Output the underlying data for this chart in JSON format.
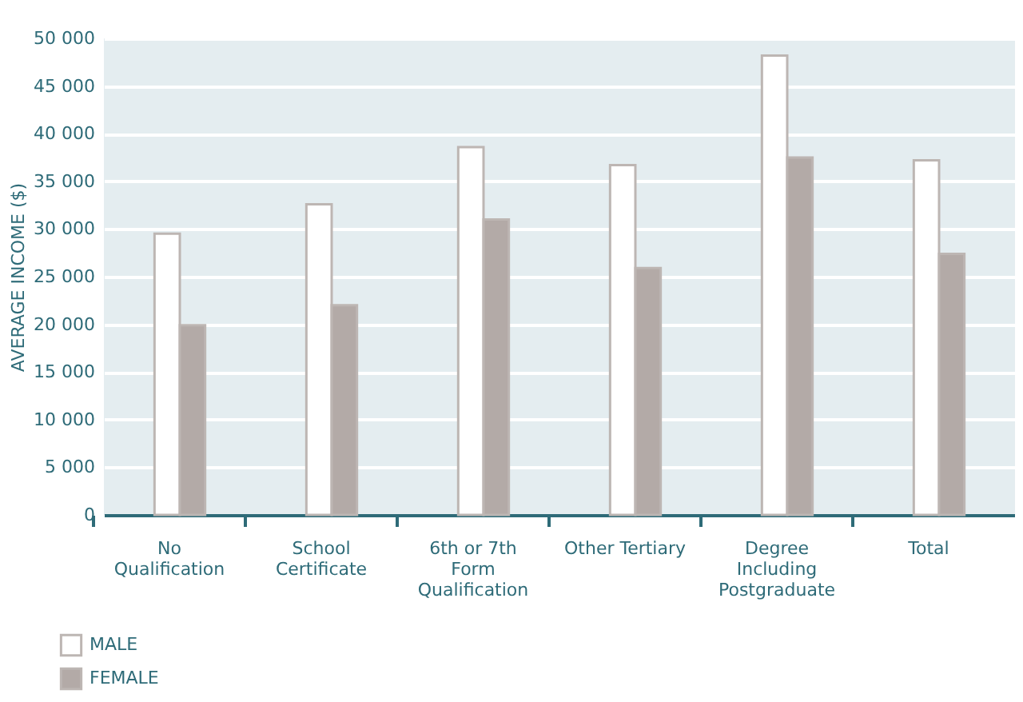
{
  "chart_data": {
    "type": "bar",
    "ylabel": "AVERAGE INCOME ($)",
    "categories": [
      "No Qualification",
      "School Certificate",
      "6th or 7th Form Qualification",
      "Other Tertiary",
      "Degree Including Postgraduate",
      "Total"
    ],
    "series": [
      {
        "name": "MALE",
        "color": "#ffffff",
        "values": [
          29500,
          32600,
          38600,
          36700,
          48200,
          37200
        ]
      },
      {
        "name": "FEMALE",
        "color": "#b3aaa7",
        "values": [
          19900,
          22000,
          31000,
          25900,
          37500,
          27400
        ]
      }
    ],
    "ylim": [
      0,
      50000
    ],
    "yticks": [
      {
        "value": 0,
        "label": "0"
      },
      {
        "value": 5000,
        "label": "5 000"
      },
      {
        "value": 10000,
        "label": "10 000"
      },
      {
        "value": 15000,
        "label": "15 000"
      },
      {
        "value": 20000,
        "label": "20 000"
      },
      {
        "value": 25000,
        "label": "25 000"
      },
      {
        "value": 30000,
        "label": "30 000"
      },
      {
        "value": 35000,
        "label": "35 000"
      },
      {
        "value": 40000,
        "label": "40 000"
      },
      {
        "value": 45000,
        "label": "45 000"
      },
      {
        "value": 50000,
        "label": "50 000"
      }
    ],
    "grid": "y",
    "legend": "bottom left"
  }
}
